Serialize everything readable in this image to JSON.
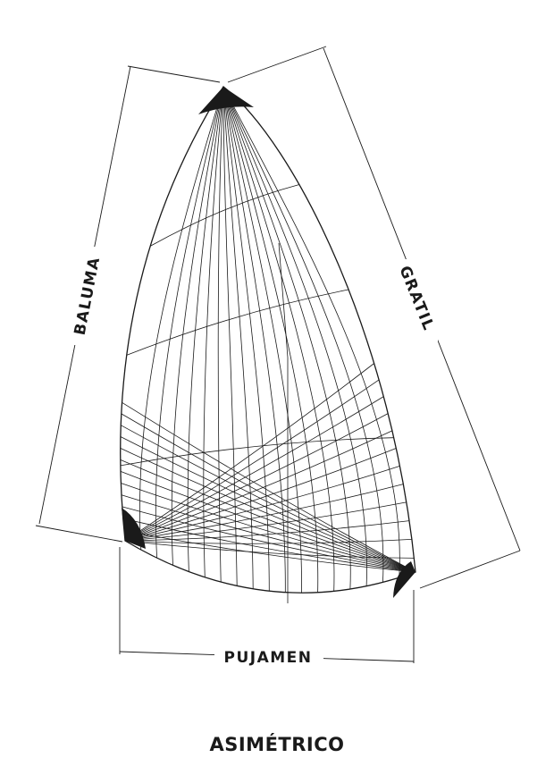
{
  "labels": {
    "luff": "GRATIL",
    "leech": "BALUMA",
    "foot": "PUJAMEN"
  },
  "caption": "ASIMÉTRICO",
  "colors": {
    "line": "#1a1a1a",
    "fill_corner": "#1a1a1a",
    "background": "#ffffff"
  }
}
